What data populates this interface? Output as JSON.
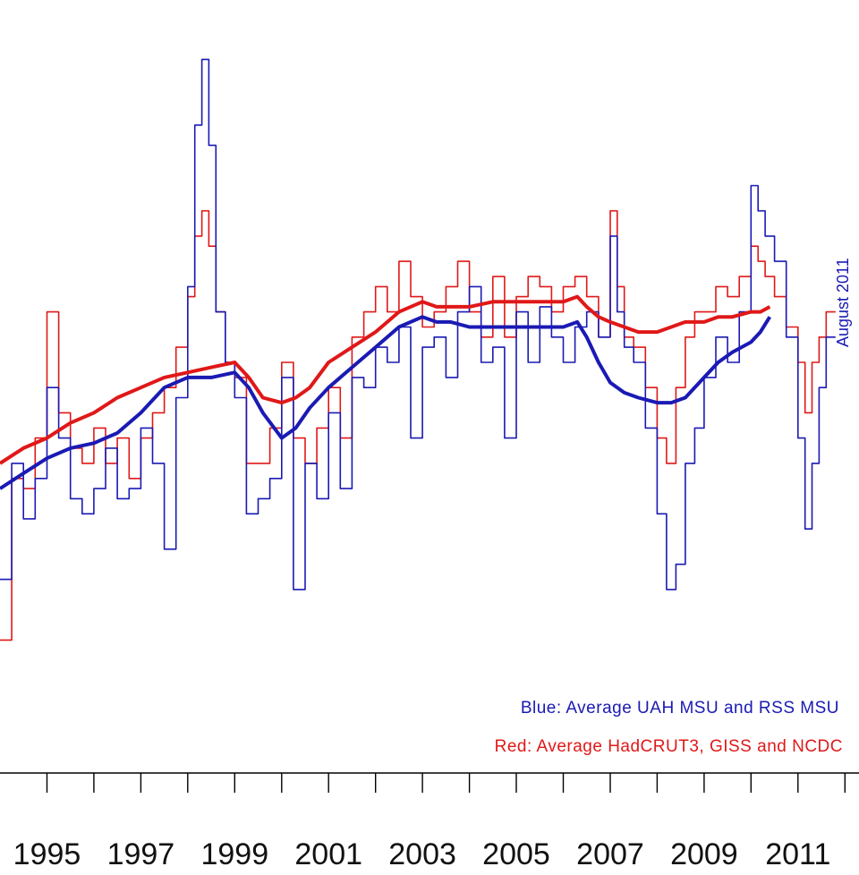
{
  "chart_data": {
    "type": "line",
    "title": "",
    "xlabel": "",
    "ylabel": "",
    "xlim": [
      1994.0,
      2012.3
    ],
    "ylim": [
      -0.45,
      0.95
    ],
    "x_tick_labels": [
      "1995",
      "1997",
      "1999",
      "2001",
      "2003",
      "2005",
      "2007",
      "2009",
      "2011"
    ],
    "x_ticks_major": [
      1995,
      1997,
      1999,
      2001,
      2003,
      2005,
      2007,
      2009,
      2011
    ],
    "x_ticks_minor": [
      1996,
      1998,
      2000,
      2002,
      2004,
      2006,
      2008,
      2010,
      2012
    ],
    "annotation": "August 2011",
    "legend": {
      "position": "bottom-right",
      "blue": "Blue: Average UAH MSU and RSS MSU",
      "red": "Red: Average HadCRUT3, GISS and NCDC"
    },
    "colors": {
      "blue": "#1a1ab4",
      "red": "#e01818",
      "axis": "#000000",
      "text": "#111111"
    },
    "series": [
      {
        "color": "blue",
        "style": "monthly",
        "x": [
          1994.0,
          1994.25,
          1994.5,
          1994.75,
          1995.0,
          1995.25,
          1995.5,
          1995.75,
          1996.0,
          1996.25,
          1996.5,
          1996.75,
          1997.0,
          1997.25,
          1997.5,
          1997.75,
          1998.0,
          1998.15,
          1998.3,
          1998.45,
          1998.6,
          1998.8,
          1999.0,
          1999.25,
          1999.5,
          1999.75,
          2000.0,
          2000.25,
          2000.5,
          2000.75,
          2001.0,
          2001.25,
          2001.5,
          2001.75,
          2002.0,
          2002.25,
          2002.5,
          2002.75,
          2003.0,
          2003.25,
          2003.5,
          2003.75,
          2004.0,
          2004.25,
          2004.5,
          2004.75,
          2005.0,
          2005.25,
          2005.5,
          2005.75,
          2006.0,
          2006.25,
          2006.5,
          2006.75,
          2007.0,
          2007.15,
          2007.3,
          2007.5,
          2007.75,
          2008.0,
          2008.2,
          2008.4,
          2008.6,
          2008.8,
          2009.0,
          2009.25,
          2009.5,
          2009.75,
          2010.0,
          2010.15,
          2010.3,
          2010.5,
          2010.75,
          2011.0,
          2011.15,
          2011.3,
          2011.45,
          2011.6
        ],
        "y": [
          -0.18,
          0.05,
          -0.06,
          0.02,
          0.2,
          0.1,
          -0.02,
          -0.05,
          0.0,
          0.08,
          -0.02,
          0.0,
          0.12,
          0.05,
          -0.12,
          0.18,
          0.4,
          0.72,
          0.85,
          0.68,
          0.35,
          0.25,
          0.18,
          -0.05,
          -0.02,
          0.02,
          0.22,
          -0.2,
          0.05,
          -0.02,
          0.15,
          0.0,
          0.22,
          0.2,
          0.28,
          0.25,
          0.32,
          0.1,
          0.28,
          0.3,
          0.22,
          0.35,
          0.4,
          0.25,
          0.28,
          0.1,
          0.35,
          0.25,
          0.36,
          0.3,
          0.25,
          0.32,
          0.35,
          0.3,
          0.5,
          0.35,
          0.28,
          0.25,
          0.12,
          -0.05,
          -0.2,
          -0.15,
          0.05,
          0.12,
          0.22,
          0.3,
          0.25,
          0.35,
          0.6,
          0.55,
          0.5,
          0.45,
          0.3,
          0.1,
          -0.08,
          0.05,
          0.2,
          0.3
        ]
      },
      {
        "color": "red",
        "style": "monthly",
        "x": [
          1994.0,
          1994.25,
          1994.5,
          1994.75,
          1995.0,
          1995.25,
          1995.5,
          1995.75,
          1996.0,
          1996.25,
          1996.5,
          1996.75,
          1997.0,
          1997.25,
          1997.5,
          1997.75,
          1998.0,
          1998.15,
          1998.3,
          1998.45,
          1998.6,
          1998.8,
          1999.0,
          1999.25,
          1999.5,
          1999.75,
          2000.0,
          2000.25,
          2000.5,
          2000.75,
          2001.0,
          2001.25,
          2001.5,
          2001.75,
          2002.0,
          2002.25,
          2002.5,
          2002.75,
          2003.0,
          2003.25,
          2003.5,
          2003.75,
          2004.0,
          2004.25,
          2004.5,
          2004.75,
          2005.0,
          2005.25,
          2005.5,
          2005.75,
          2006.0,
          2006.25,
          2006.5,
          2006.75,
          2007.0,
          2007.15,
          2007.3,
          2007.5,
          2007.75,
          2008.0,
          2008.2,
          2008.4,
          2008.6,
          2008.8,
          2009.0,
          2009.25,
          2009.5,
          2009.75,
          2010.0,
          2010.15,
          2010.3,
          2010.5,
          2010.75,
          2011.0,
          2011.15,
          2011.3,
          2011.45,
          2011.6
        ],
        "y": [
          -0.3,
          0.02,
          0.0,
          0.1,
          0.35,
          0.15,
          0.08,
          0.05,
          0.12,
          0.05,
          0.1,
          0.02,
          0.1,
          0.15,
          0.2,
          0.28,
          0.38,
          0.5,
          0.55,
          0.48,
          0.35,
          0.25,
          0.22,
          0.05,
          0.05,
          0.12,
          0.25,
          0.1,
          0.05,
          0.12,
          0.2,
          0.1,
          0.3,
          0.35,
          0.4,
          0.35,
          0.45,
          0.38,
          0.32,
          0.35,
          0.4,
          0.45,
          0.35,
          0.3,
          0.42,
          0.3,
          0.38,
          0.42,
          0.4,
          0.35,
          0.4,
          0.42,
          0.38,
          0.3,
          0.55,
          0.4,
          0.3,
          0.28,
          0.2,
          0.1,
          0.05,
          0.2,
          0.3,
          0.35,
          0.35,
          0.4,
          0.38,
          0.42,
          0.48,
          0.45,
          0.42,
          0.38,
          0.32,
          0.25,
          0.15,
          0.25,
          0.3,
          0.35
        ]
      },
      {
        "color": "blue",
        "style": "smoothed",
        "x": [
          1994.0,
          1994.5,
          1995.0,
          1995.5,
          1996.0,
          1996.5,
          1997.0,
          1997.5,
          1998.0,
          1998.5,
          1999.0,
          1999.3,
          1999.6,
          2000.0,
          2000.3,
          2000.6,
          2001.0,
          2001.5,
          2002.0,
          2002.5,
          2003.0,
          2003.3,
          2003.6,
          2004.0,
          2004.5,
          2005.0,
          2005.5,
          2006.0,
          2006.3,
          2006.5,
          2006.75,
          2007.0,
          2007.3,
          2007.6,
          2008.0,
          2008.3,
          2008.6,
          2009.0,
          2009.3,
          2009.6,
          2010.0,
          2010.2,
          2010.4
        ],
        "y": [
          0.0,
          0.03,
          0.06,
          0.08,
          0.09,
          0.11,
          0.15,
          0.2,
          0.22,
          0.22,
          0.23,
          0.2,
          0.15,
          0.1,
          0.12,
          0.16,
          0.2,
          0.24,
          0.28,
          0.32,
          0.34,
          0.33,
          0.33,
          0.32,
          0.32,
          0.32,
          0.32,
          0.32,
          0.33,
          0.3,
          0.25,
          0.21,
          0.19,
          0.18,
          0.17,
          0.17,
          0.18,
          0.22,
          0.25,
          0.27,
          0.29,
          0.31,
          0.34
        ]
      },
      {
        "color": "red",
        "style": "smoothed",
        "x": [
          1994.0,
          1994.5,
          1995.0,
          1995.5,
          1996.0,
          1996.5,
          1997.0,
          1997.5,
          1998.0,
          1998.5,
          1999.0,
          1999.3,
          1999.6,
          2000.0,
          2000.3,
          2000.6,
          2001.0,
          2001.5,
          2002.0,
          2002.5,
          2003.0,
          2003.3,
          2003.6,
          2004.0,
          2004.5,
          2005.0,
          2005.5,
          2006.0,
          2006.3,
          2006.5,
          2006.75,
          2007.0,
          2007.3,
          2007.6,
          2008.0,
          2008.3,
          2008.6,
          2009.0,
          2009.3,
          2009.6,
          2010.0,
          2010.2,
          2010.4
        ],
        "y": [
          0.05,
          0.08,
          0.1,
          0.13,
          0.15,
          0.18,
          0.2,
          0.22,
          0.23,
          0.24,
          0.25,
          0.22,
          0.18,
          0.17,
          0.18,
          0.2,
          0.25,
          0.28,
          0.31,
          0.35,
          0.37,
          0.36,
          0.36,
          0.36,
          0.37,
          0.37,
          0.37,
          0.37,
          0.38,
          0.36,
          0.34,
          0.33,
          0.32,
          0.31,
          0.31,
          0.32,
          0.33,
          0.33,
          0.34,
          0.34,
          0.35,
          0.35,
          0.36
        ]
      }
    ]
  }
}
